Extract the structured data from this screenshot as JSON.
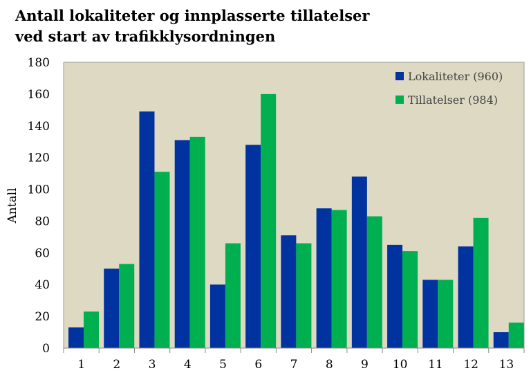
{
  "chart_data": {
    "type": "bar",
    "title_lines": [
      "Antall lokaliteter og innplasserte tillatelser",
      "ved start av trafikklysordningen"
    ],
    "xlabel": "",
    "ylabel": "Antall",
    "ylim": [
      0,
      180
    ],
    "yticks": [
      0,
      20,
      40,
      60,
      80,
      100,
      120,
      140,
      160,
      180
    ],
    "categories": [
      "1",
      "2",
      "3",
      "4",
      "5",
      "6",
      "7",
      "8",
      "9",
      "10",
      "11",
      "12",
      "13"
    ],
    "series": [
      {
        "name": "Lokaliteter (960)",
        "color": "#0033a0",
        "values": [
          13,
          50,
          149,
          131,
          40,
          128,
          71,
          88,
          108,
          65,
          43,
          64,
          10
        ]
      },
      {
        "name": "Tillatelser (984)",
        "color": "#00b050",
        "values": [
          23,
          53,
          111,
          133,
          66,
          160,
          66,
          87,
          83,
          61,
          43,
          82,
          16
        ]
      }
    ],
    "legend_position": "top-right",
    "grid": false,
    "plot_background": "#ddd9c3"
  }
}
